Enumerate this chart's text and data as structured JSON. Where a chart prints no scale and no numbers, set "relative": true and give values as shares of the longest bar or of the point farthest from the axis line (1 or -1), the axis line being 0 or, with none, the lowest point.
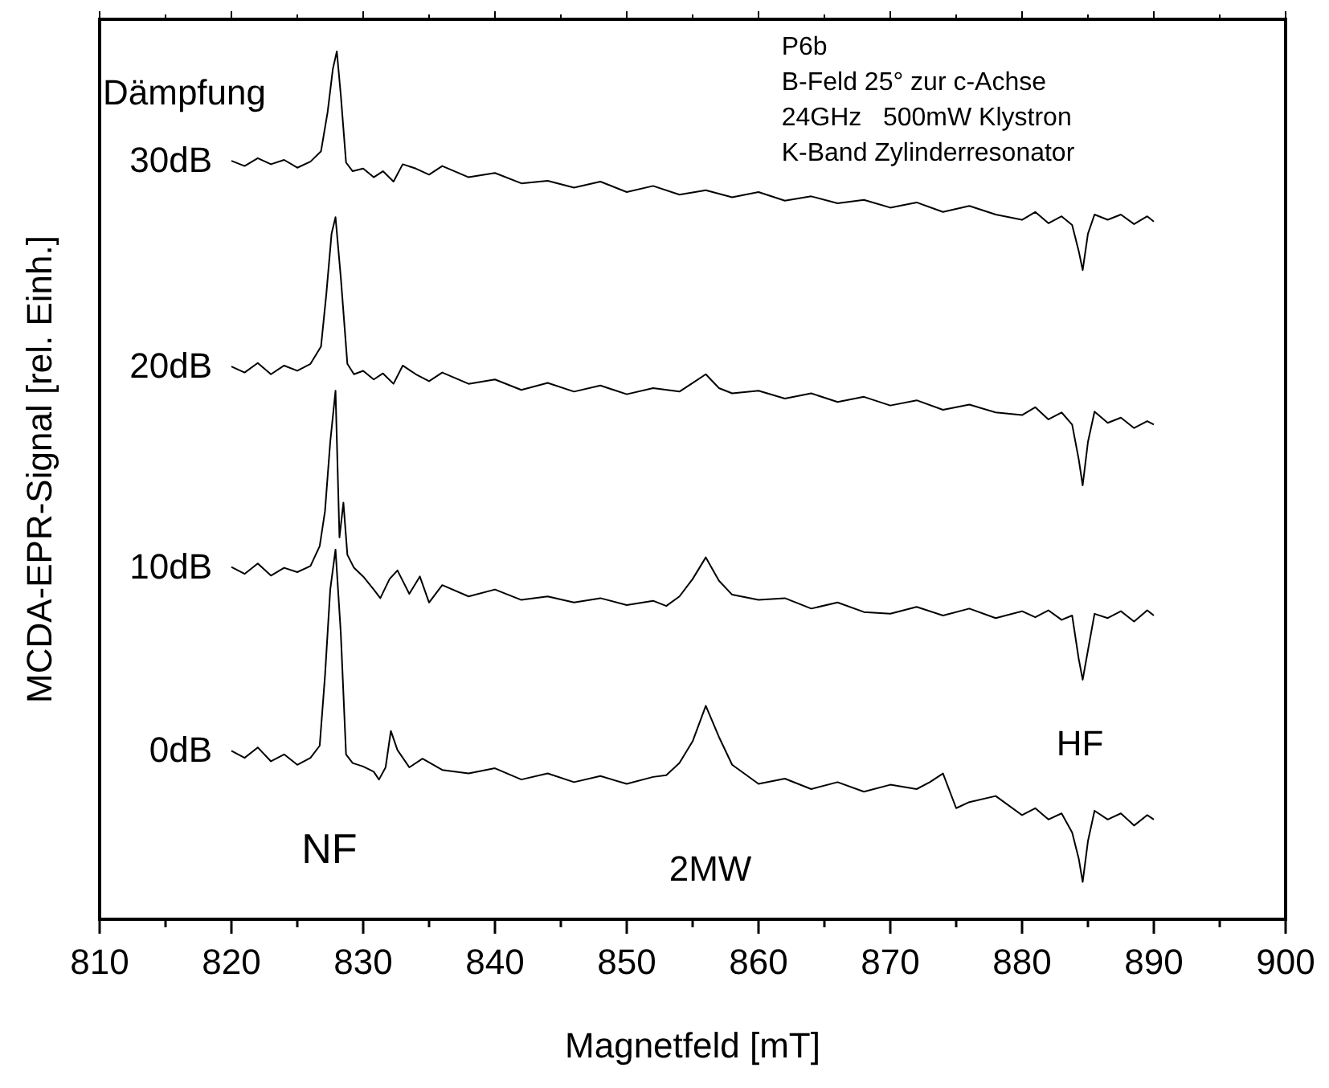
{
  "chart_data": {
    "type": "line",
    "relative": true,
    "xlabel": "Magnetfeld [mT]",
    "ylabel": "MCDA-EPR-Signal [rel. Einh.]",
    "legend_title": "Dämpfung",
    "xlim": [
      810,
      900
    ],
    "xticks": [
      810,
      {
        "value": 815,
        "label": null
      },
      820,
      {
        "value": 825,
        "label": null
      },
      830,
      {
        "value": 835,
        "label": null
      },
      840,
      {
        "value": 845,
        "label": null
      },
      850,
      {
        "value": 855,
        "label": null
      },
      860,
      {
        "value": 865,
        "label": null
      },
      870,
      {
        "value": 875,
        "label": null
      },
      880,
      {
        "value": 885,
        "label": null
      },
      890,
      {
        "value": 895,
        "label": null
      },
      900
    ],
    "series": [
      {
        "name": "30dB",
        "color": "#000000",
        "x": [
          820,
          821,
          822,
          823,
          824,
          825,
          826,
          826.8,
          827.3,
          827.7,
          828,
          828.3,
          828.7,
          829.2,
          830,
          830.8,
          831.5,
          832.3,
          833,
          834,
          835,
          836,
          838,
          840,
          842,
          844,
          846,
          848,
          850,
          852,
          854,
          856,
          858,
          860,
          862,
          864,
          866,
          868,
          870,
          872,
          874,
          876,
          878,
          880,
          881,
          882,
          883,
          883.8,
          884.3,
          884.6,
          885,
          885.5,
          886.5,
          887.5,
          888.5,
          889.5,
          890
        ],
        "values": [
          0.874,
          0.868,
          0.877,
          0.87,
          0.875,
          0.866,
          0.873,
          0.885,
          0.93,
          0.98,
          1.0,
          0.95,
          0.872,
          0.862,
          0.865,
          0.855,
          0.862,
          0.85,
          0.87,
          0.865,
          0.858,
          0.868,
          0.855,
          0.86,
          0.848,
          0.851,
          0.843,
          0.85,
          0.838,
          0.845,
          0.835,
          0.84,
          0.832,
          0.838,
          0.828,
          0.833,
          0.825,
          0.829,
          0.82,
          0.826,
          0.815,
          0.822,
          0.812,
          0.806,
          0.815,
          0.802,
          0.81,
          0.8,
          0.77,
          0.748,
          0.79,
          0.812,
          0.806,
          0.812,
          0.801,
          0.81,
          0.804
        ]
      },
      {
        "name": "20dB",
        "color": "#000000",
        "x": [
          820,
          821,
          822,
          823,
          824,
          825,
          826,
          826.8,
          827.2,
          827.6,
          827.9,
          828.3,
          828.8,
          829.3,
          830,
          830.8,
          831.5,
          832.3,
          833,
          834,
          835,
          836,
          838,
          840,
          842,
          844,
          846,
          848,
          850,
          852,
          854,
          855,
          856,
          857,
          858,
          860,
          862,
          864,
          866,
          868,
          870,
          872,
          874,
          876,
          878,
          880,
          881,
          882,
          883,
          883.8,
          884.3,
          884.6,
          885,
          885.5,
          886.5,
          887.5,
          888.5,
          889.5,
          890
        ],
        "values": [
          0.637,
          0.63,
          0.641,
          0.628,
          0.638,
          0.632,
          0.64,
          0.66,
          0.72,
          0.79,
          0.809,
          0.74,
          0.64,
          0.628,
          0.632,
          0.622,
          0.629,
          0.617,
          0.638,
          0.628,
          0.62,
          0.63,
          0.617,
          0.622,
          0.61,
          0.618,
          0.608,
          0.615,
          0.605,
          0.612,
          0.608,
          0.618,
          0.628,
          0.612,
          0.606,
          0.609,
          0.6,
          0.606,
          0.596,
          0.602,
          0.592,
          0.598,
          0.587,
          0.593,
          0.584,
          0.581,
          0.59,
          0.576,
          0.584,
          0.57,
          0.53,
          0.5,
          0.55,
          0.585,
          0.572,
          0.578,
          0.566,
          0.574,
          0.57
        ]
      },
      {
        "name": "10dB",
        "color": "#000000",
        "x": [
          820,
          821,
          822,
          823,
          824,
          825,
          826,
          826.7,
          827.1,
          827.5,
          827.9,
          828.2,
          828.5,
          828.8,
          829.3,
          830,
          830.8,
          831.3,
          832,
          832.6,
          833.5,
          834.3,
          835,
          836,
          838,
          840,
          842,
          844,
          846,
          848,
          850,
          852,
          853,
          854,
          855,
          856,
          857,
          858,
          860,
          862,
          864,
          866,
          868,
          870,
          872,
          874,
          876,
          878,
          880,
          881,
          882,
          883,
          883.8,
          884.3,
          884.6,
          885,
          885.5,
          886.5,
          887.5,
          888.5,
          889.5,
          890
        ],
        "values": [
          0.406,
          0.398,
          0.41,
          0.396,
          0.405,
          0.4,
          0.407,
          0.43,
          0.47,
          0.55,
          0.609,
          0.44,
          0.48,
          0.42,
          0.405,
          0.395,
          0.38,
          0.37,
          0.392,
          0.402,
          0.375,
          0.395,
          0.365,
          0.385,
          0.372,
          0.38,
          0.368,
          0.372,
          0.365,
          0.37,
          0.362,
          0.367,
          0.361,
          0.372,
          0.392,
          0.417,
          0.39,
          0.374,
          0.368,
          0.37,
          0.358,
          0.365,
          0.354,
          0.352,
          0.36,
          0.35,
          0.358,
          0.347,
          0.355,
          0.348,
          0.356,
          0.345,
          0.35,
          0.3,
          0.276,
          0.31,
          0.352,
          0.347,
          0.355,
          0.343,
          0.356,
          0.35
        ]
      },
      {
        "name": "0dB",
        "color": "#000000",
        "x": [
          820,
          821,
          822,
          823,
          824,
          825,
          826,
          826.7,
          827.1,
          827.5,
          827.9,
          828.3,
          828.7,
          829.2,
          830,
          830.8,
          831.2,
          831.7,
          832.1,
          832.6,
          833.5,
          834.5,
          836,
          838,
          840,
          842,
          844,
          846,
          848,
          850,
          852,
          853,
          854,
          855,
          856,
          857,
          858,
          860,
          862,
          864,
          866,
          868,
          870,
          872,
          873,
          874,
          875,
          876,
          878,
          880,
          881,
          882,
          883,
          883.8,
          884.3,
          884.6,
          885,
          885.5,
          886.5,
          887.5,
          888.5,
          889.5,
          890
        ],
        "values": [
          0.194,
          0.186,
          0.198,
          0.182,
          0.19,
          0.178,
          0.186,
          0.2,
          0.28,
          0.38,
          0.426,
          0.33,
          0.19,
          0.18,
          0.176,
          0.17,
          0.161,
          0.175,
          0.217,
          0.195,
          0.175,
          0.185,
          0.172,
          0.168,
          0.174,
          0.161,
          0.168,
          0.158,
          0.165,
          0.156,
          0.164,
          0.166,
          0.18,
          0.205,
          0.246,
          0.21,
          0.178,
          0.156,
          0.162,
          0.15,
          0.158,
          0.147,
          0.155,
          0.15,
          0.158,
          0.168,
          0.128,
          0.135,
          0.142,
          0.12,
          0.128,
          0.115,
          0.122,
          0.1,
          0.07,
          0.043,
          0.09,
          0.125,
          0.115,
          0.122,
          0.108,
          0.12,
          0.115
        ]
      }
    ],
    "annotations": [
      "NF",
      "2MW",
      "HF",
      "P6b",
      "B-Feld 25° zur c-Achse",
      "24GHz   500mW Klystron",
      "K-Band Zylinderresonator"
    ]
  }
}
